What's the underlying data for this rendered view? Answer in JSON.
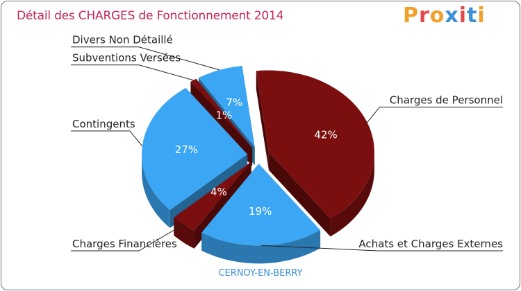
{
  "title": "Détail des CHARGES de Fonctionnement 2014",
  "logo": "Proxiti",
  "commune": "CERNOY-EN-BERRY",
  "colors": {
    "personnel": "#7b0f0f",
    "blue": "#3ba6f3",
    "title": "#c2255c"
  },
  "logo_colors": [
    "#f1a02b",
    "#e24a4a",
    "#f1a02b",
    "#3a8fd8",
    "#e24a4a",
    "#3a8fd8",
    "#f1a02b"
  ],
  "chart_data": {
    "type": "pie",
    "title": "Détail des CHARGES de Fonctionnement 2014",
    "slices": [
      {
        "label": "Charges de Personnel",
        "value": 42,
        "pct_label": "42%",
        "color": "#7b0f0f"
      },
      {
        "label": "Achats et Charges Externes",
        "value": 19,
        "pct_label": "19%",
        "color": "#3ba6f3"
      },
      {
        "label": "Charges Financières",
        "value": 4,
        "pct_label": "4%",
        "color": "#7b0f0f"
      },
      {
        "label": "Contingents",
        "value": 27,
        "pct_label": "27%",
        "color": "#3ba6f3"
      },
      {
        "label": "Subventions Versées",
        "value": 1,
        "pct_label": "1%",
        "color": "#7b0f0f"
      },
      {
        "label": "Divers Non Détaillé",
        "value": 7,
        "pct_label": "7%",
        "color": "#3ba6f3"
      }
    ]
  }
}
